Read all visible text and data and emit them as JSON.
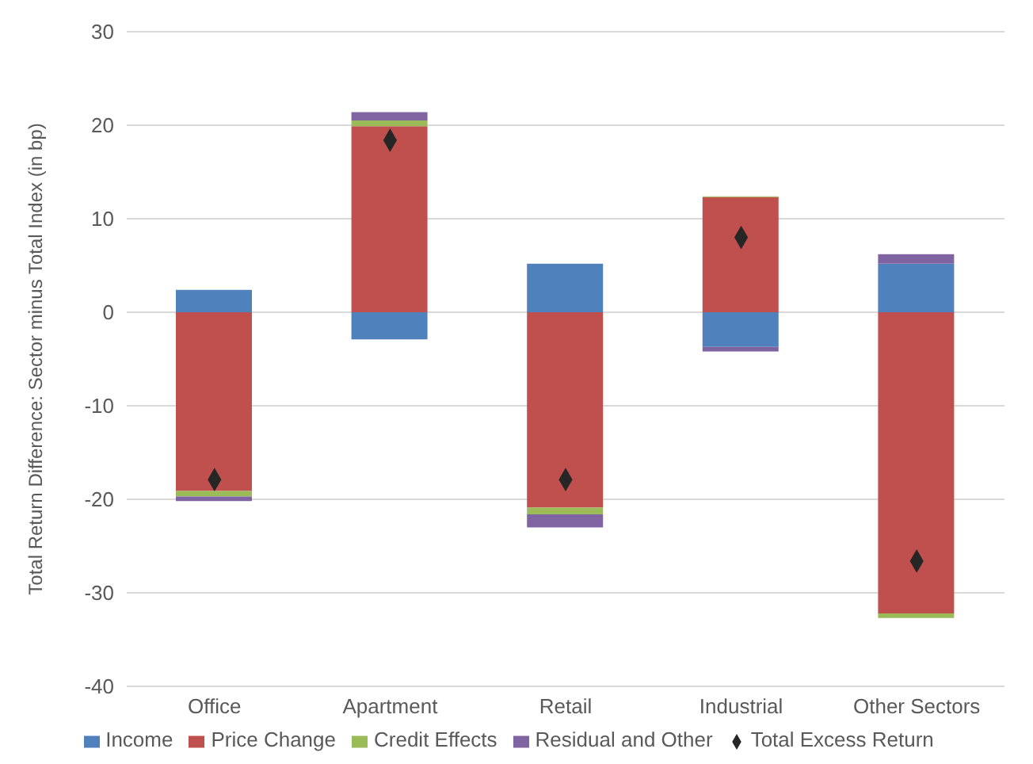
{
  "chart_data": {
    "type": "bar",
    "stacked": true,
    "ylabel": "Total Return Difference: Sector minus Total Index (in bp)",
    "categories": [
      "Office",
      "Apartment",
      "Retail",
      "Industrial",
      "Other Sectors"
    ],
    "series": [
      {
        "name": "Income",
        "color": "#4f81bd",
        "values": [
          2.4,
          -2.9,
          5.2,
          -3.7,
          5.2
        ]
      },
      {
        "name": "Price Change",
        "color": "#c0504d",
        "values": [
          -19.1,
          19.9,
          -20.9,
          12.3,
          -32.2
        ]
      },
      {
        "name": "Credit Effects",
        "color": "#9bbb59",
        "values": [
          -0.6,
          0.6,
          -0.7,
          0.1,
          -0.5
        ]
      },
      {
        "name": "Residual and Other",
        "color": "#8064a2",
        "values": [
          -0.5,
          0.9,
          -1.4,
          -0.5,
          1.0
        ]
      },
      {
        "name": "Total Excess Return",
        "type": "scatter",
        "marker": "diamond",
        "color": "#262626",
        "values": [
          -17.9,
          18.4,
          -17.9,
          8.0,
          -26.6
        ]
      }
    ],
    "ylim": [
      -40,
      30
    ],
    "yticks": [
      -40,
      -30,
      -20,
      -10,
      0,
      10,
      20,
      30
    ],
    "grid": "y",
    "legend": "bottom"
  }
}
